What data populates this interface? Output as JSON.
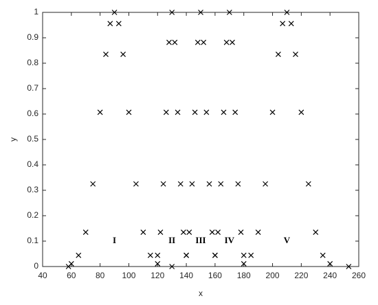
{
  "chart_data": {
    "type": "scatter",
    "x_label": "x",
    "y_label": "y",
    "xlim": [
      40,
      260
    ],
    "ylim": [
      0,
      1
    ],
    "xticks": [
      40,
      60,
      80,
      100,
      120,
      140,
      160,
      180,
      200,
      220,
      240,
      260
    ],
    "yticks": [
      0,
      0.1,
      0.2,
      0.3,
      0.4,
      0.5,
      0.6,
      0.7,
      0.8,
      0.9,
      1
    ],
    "grid": false,
    "series": [
      {
        "color": "#000000",
        "marker": "x",
        "x": [
          60,
          65,
          70,
          75,
          80,
          84,
          87,
          90,
          93,
          96,
          100,
          105,
          110,
          115,
          120,
          120,
          122,
          124,
          126,
          128,
          130,
          132,
          134,
          136,
          138,
          140,
          140,
          142,
          144,
          146,
          148,
          150,
          152,
          154,
          156,
          158,
          160,
          160,
          162,
          164,
          166,
          168,
          170,
          172,
          174,
          176,
          178,
          180,
          180,
          185,
          190,
          195,
          200,
          204,
          207,
          210,
          213,
          216,
          220,
          225,
          230,
          235,
          240,
          58,
          130,
          253
        ],
        "values": [
          0.011,
          0.044,
          0.135,
          0.325,
          0.607,
          0.835,
          0.956,
          1,
          0.956,
          0.835,
          0.607,
          0.325,
          0.135,
          0.044,
          0.011,
          0.044,
          0.135,
          0.325,
          0.607,
          0.882,
          1,
          0.882,
          0.607,
          0.325,
          0.135,
          0.044,
          0.044,
          0.135,
          0.325,
          0.607,
          0.882,
          1,
          0.882,
          0.607,
          0.325,
          0.135,
          0.044,
          0.044,
          0.135,
          0.325,
          0.607,
          0.882,
          1,
          0.882,
          0.607,
          0.325,
          0.135,
          0.044,
          0.011,
          0.044,
          0.135,
          0.325,
          0.607,
          0.835,
          0.956,
          1,
          0.956,
          0.835,
          0.607,
          0.325,
          0.135,
          0.044,
          0.011,
          0,
          0,
          0
        ]
      }
    ],
    "annotations": [
      {
        "text": "I",
        "x": 90,
        "y": 0.1
      },
      {
        "text": "II",
        "x": 130,
        "y": 0.1
      },
      {
        "text": "III",
        "x": 150,
        "y": 0.1
      },
      {
        "text": "IV",
        "x": 170,
        "y": 0.1
      },
      {
        "text": "V",
        "x": 210,
        "y": 0.1
      }
    ]
  }
}
